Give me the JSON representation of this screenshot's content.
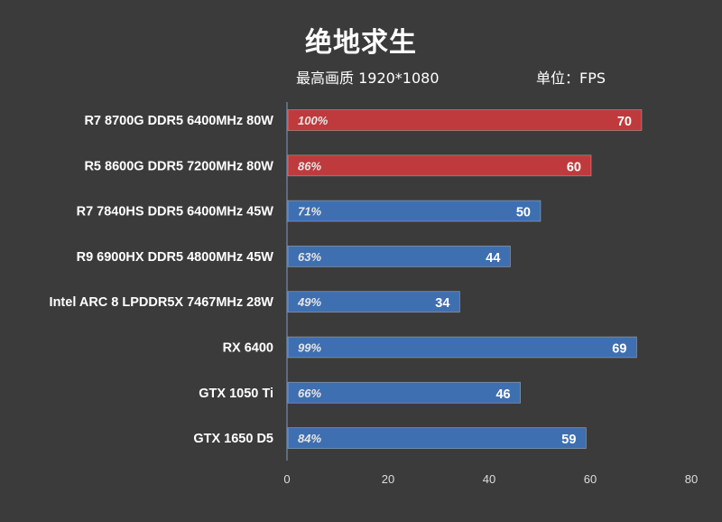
{
  "title": "绝地求生",
  "subtitle": "最高画质 1920*1080",
  "unit_label": "单位：FPS",
  "colors": {
    "background": "#3b3b3b",
    "highlight_bar": "#bf3a3c",
    "normal_bar": "#3e6fb0",
    "axis": "#7f9cc4",
    "tick_text": "#dddddd"
  },
  "chart_data": {
    "type": "bar",
    "orientation": "horizontal",
    "title": "绝地求生",
    "subtitle": "最高画质 1920*1080",
    "unit": "单位：FPS",
    "categories": [
      "R7 8700G DDR5 6400MHz 80W",
      "R5 8600G DDR5 7200MHz 80W",
      "R7 7840HS DDR5 6400MHz 45W",
      "R9 6900HX DDR5 4800MHz 45W",
      "Intel ARC 8 LPDDR5X 7467MHz 28W",
      "RX 6400",
      "GTX 1050 Ti",
      "GTX 1650 D5"
    ],
    "values": [
      70,
      60,
      50,
      44,
      34,
      69,
      46,
      59
    ],
    "percent_labels": [
      "100%",
      "86%",
      "71%",
      "63%",
      "49%",
      "99%",
      "66%",
      "84%"
    ],
    "highlight": [
      true,
      true,
      false,
      false,
      false,
      false,
      false,
      false
    ],
    "xlim": [
      0,
      80
    ],
    "xticks": [
      0,
      20,
      40,
      60,
      80
    ],
    "grid": false,
    "legend": "none"
  }
}
